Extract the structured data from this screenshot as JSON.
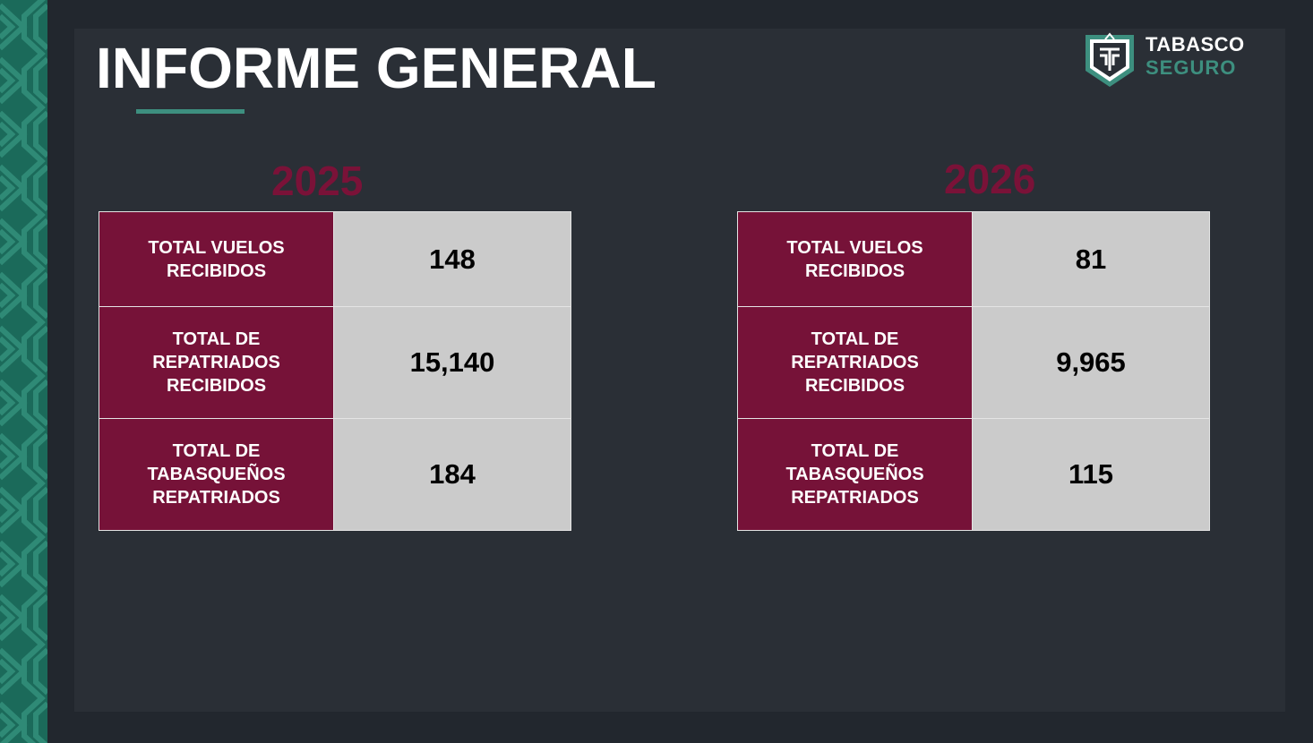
{
  "slide": {
    "title": "INFORME GENERAL",
    "logo": {
      "line1": "TABASCO",
      "line2": "SEGURO",
      "icon": "shield-emblem-icon"
    }
  },
  "colors": {
    "background": "#22272e",
    "panel": "#2a2f36",
    "accent_green": "#3d8f7f",
    "pattern_green": "#1b6a5a",
    "label_maroon": "#761238",
    "year_maroon": "#7a1238",
    "value_gray": "#cbcbcb"
  },
  "tables": [
    {
      "year": "2025",
      "rows": [
        {
          "label": "TOTAL VUELOS RECIBIDOS",
          "value": "148"
        },
        {
          "label": "TOTAL DE REPATRIADOS RECIBIDOS",
          "value": "15,140"
        },
        {
          "label": "TOTAL DE TABASQUEÑOS REPATRIADOS",
          "value": "184"
        }
      ]
    },
    {
      "year": "2026",
      "rows": [
        {
          "label": "TOTAL VUELOS RECIBIDOS",
          "value": "81"
        },
        {
          "label": "TOTAL DE REPATRIADOS RECIBIDOS",
          "value": "9,965"
        },
        {
          "label": "TOTAL DE TABASQUEÑOS REPATRIADOS",
          "value": "115"
        }
      ]
    }
  ]
}
